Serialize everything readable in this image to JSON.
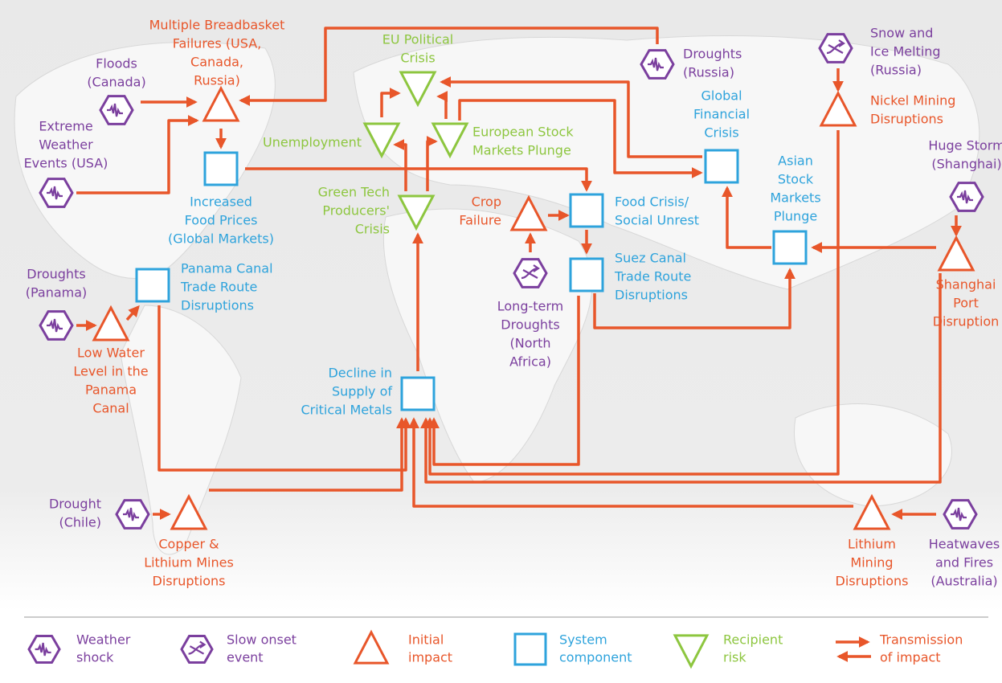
{
  "nodes": [
    {
      "kind": "weather",
      "label": [
        "Floods",
        "(Canada)"
      ]
    },
    {
      "kind": "weather",
      "label": [
        "Extreme",
        "Weather",
        "Events (USA)"
      ]
    },
    {
      "kind": "initial",
      "label": [
        "Multiple Breadbasket",
        "Failures (USA,",
        "Canada,",
        "Russia)"
      ]
    },
    {
      "kind": "system",
      "label": [
        "Increased",
        "Food Prices",
        "(Global Markets)"
      ]
    },
    {
      "kind": "weather",
      "label": [
        "Droughts",
        "(Russia)"
      ]
    },
    {
      "kind": "recipient",
      "label": [
        "EU Political",
        "Crisis"
      ]
    },
    {
      "kind": "recipient",
      "label": [
        "Unemployment"
      ]
    },
    {
      "kind": "recipient",
      "label": [
        "European Stock",
        "Markets Plunge"
      ]
    },
    {
      "kind": "recipient",
      "label": [
        "Green Tech",
        "Producers'",
        "Crisis"
      ]
    },
    {
      "kind": "system",
      "label": [
        "Global",
        "Financial",
        "Crisis"
      ]
    },
    {
      "kind": "slow",
      "label": [
        "Snow and",
        "Ice Melting",
        "(Russia)"
      ]
    },
    {
      "kind": "initial",
      "label": [
        "Nickel Mining",
        "Disruptions"
      ]
    },
    {
      "kind": "weather",
      "label": [
        "Huge Storm",
        "(Shanghai)"
      ]
    },
    {
      "kind": "system",
      "label": [
        "Asian",
        "Stock",
        "Markets",
        "Plunge"
      ]
    },
    {
      "kind": "initial",
      "label": [
        "Shanghai",
        "Port",
        "Disruption"
      ]
    },
    {
      "kind": "initial",
      "label": [
        "Crop",
        "Failure"
      ]
    },
    {
      "kind": "system",
      "label": [
        "Food Crisis/",
        "Social Unrest"
      ]
    },
    {
      "kind": "system",
      "label": [
        "Suez Canal",
        "Trade Route",
        "Disruptions"
      ]
    },
    {
      "kind": "slow",
      "label": [
        "Long-term",
        "Droughts",
        "(North",
        "Africa)"
      ]
    },
    {
      "kind": "weather",
      "label": [
        "Droughts",
        "(Panama)"
      ]
    },
    {
      "kind": "initial",
      "label": [
        "Low Water",
        "Level in the",
        "Panama",
        "Canal"
      ]
    },
    {
      "kind": "system",
      "label": [
        "Panama Canal",
        "Trade Route",
        "Disruptions"
      ]
    },
    {
      "kind": "system",
      "label": [
        "Decline in",
        "Supply of",
        "Critical Metals"
      ]
    },
    {
      "kind": "weather",
      "label": [
        "Drought",
        "(Chile)"
      ]
    },
    {
      "kind": "initial",
      "label": [
        "Copper &",
        "Lithium Mines",
        "Disruptions"
      ]
    },
    {
      "kind": "initial",
      "label": [
        "Lithium",
        "Mining",
        "Disruptions"
      ]
    },
    {
      "kind": "weather",
      "label": [
        "Heatwaves",
        "and Fires",
        "(Australia)"
      ]
    }
  ],
  "legend": [
    {
      "kind": "weather",
      "label": [
        "Weather",
        "shock"
      ]
    },
    {
      "kind": "slow",
      "label": [
        "Slow onset",
        "event"
      ]
    },
    {
      "kind": "initial",
      "label": [
        "Initial",
        "impact"
      ]
    },
    {
      "kind": "system",
      "label": [
        "System",
        "component"
      ]
    },
    {
      "kind": "recipient",
      "label": [
        "Recipient",
        "risk"
      ]
    },
    {
      "kind": "arrow",
      "label": [
        "Transmission",
        "of impact"
      ]
    }
  ]
}
